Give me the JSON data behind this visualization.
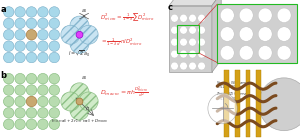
{
  "panel_a_label": "a",
  "panel_b_label": "b",
  "panel_c_label": "c",
  "circle_color_a": "#a8d8ea",
  "circle_edge_a": "#7aaec8",
  "circle_color_b": "#b8dcb0",
  "circle_edge_b": "#80b878",
  "center_color_a": "#e040fb",
  "center_edge_a": "#9900cc",
  "center_color_b": "#c8a870",
  "center_edge_b": "#a07030",
  "formula_color": "#e53935",
  "hatch_color_a": "#a8d8ea",
  "hatch_color_b": "#b8dcb0",
  "gray_cube": "#cccccc",
  "gray_cube_edge": "#aaaaaa",
  "white": "#ffffff",
  "green_box": "#22bb22",
  "red_line": "#cc3333",
  "gold": "#d4a017",
  "gold_edge": "#b08000",
  "brown": "#7b4a1e",
  "sphere_gray": "#c0c0c0"
}
